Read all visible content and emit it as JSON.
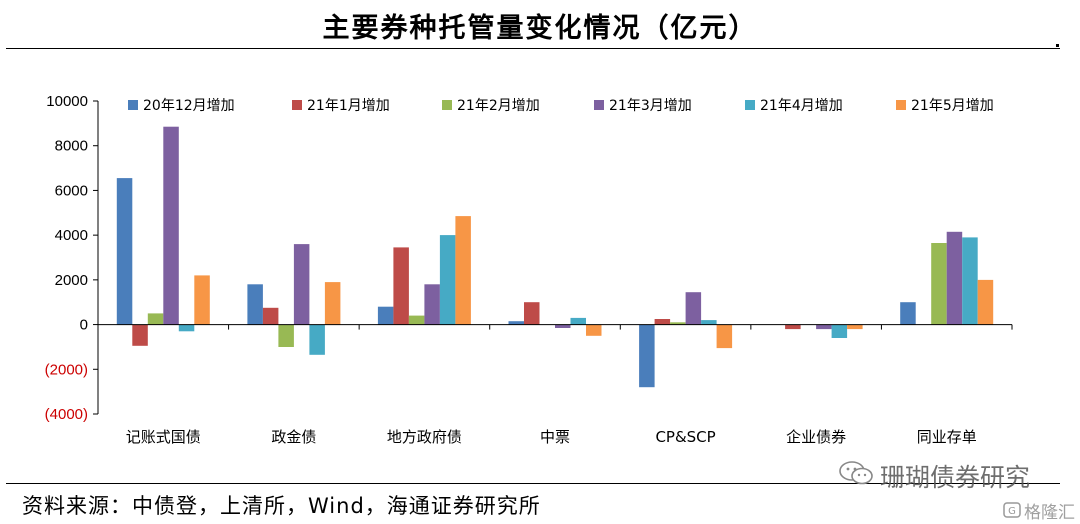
{
  "title": "主要券种托管量变化情况（亿元）",
  "source": "资料来源：中债登，上清所，Wind，海通证券研究所",
  "watermark": "珊瑚债券研究",
  "watermark2": "格隆汇",
  "colors": {
    "negative_tick": "#cc0000",
    "axis": "#000000",
    "series": [
      "#4a7ebb",
      "#be4b48",
      "#98b954",
      "#7d60a0",
      "#46aac5",
      "#f79646"
    ]
  },
  "chart_data": {
    "type": "bar",
    "categories": [
      "记账式国债",
      "政金债",
      "地方政府债",
      "中票",
      "CP&SCP",
      "企业债券",
      "同业存单"
    ],
    "series": [
      {
        "name": "20年12月增加",
        "values": [
          6550,
          1800,
          800,
          150,
          -2800,
          0,
          1000
        ]
      },
      {
        "name": "21年1月增加",
        "values": [
          -950,
          750,
          3450,
          1000,
          250,
          -200,
          0
        ]
      },
      {
        "name": "21年2月增加",
        "values": [
          500,
          -1000,
          400,
          0,
          100,
          0,
          3650
        ]
      },
      {
        "name": "21年3月增加",
        "values": [
          8850,
          3600,
          1800,
          -150,
          1450,
          -200,
          4150
        ]
      },
      {
        "name": "21年4月增加",
        "values": [
          -300,
          -1350,
          4000,
          300,
          200,
          -600,
          3900
        ]
      },
      {
        "name": "21年5月增加",
        "values": [
          2200,
          1900,
          4850,
          -500,
          -1050,
          -200,
          2000
        ]
      }
    ],
    "yticks": [
      "10000",
      "8000",
      "6000",
      "4000",
      "2000",
      "0",
      "(2000)",
      "(4000)"
    ],
    "ylim": [
      -4000,
      10000
    ],
    "legend_position": "top",
    "grid": false,
    "xlabel": "",
    "ylabel": ""
  }
}
